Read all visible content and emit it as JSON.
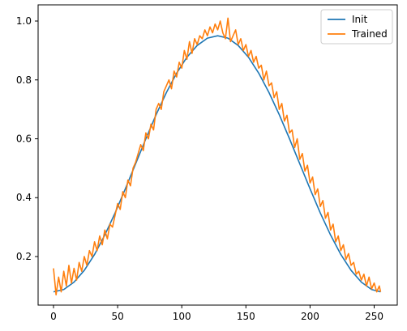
{
  "chart_data": {
    "type": "line",
    "title": "",
    "xlabel": "",
    "ylabel": "",
    "xlim": [
      -12,
      268
    ],
    "ylim": [
      0.035,
      1.055
    ],
    "xticks": [
      0,
      50,
      100,
      150,
      200,
      250
    ],
    "xtick_labels": [
      "0",
      "50",
      "100",
      "150",
      "200",
      "250"
    ],
    "yticks": [
      0.2,
      0.4,
      0.6,
      0.8,
      1.0
    ],
    "ytick_labels": [
      "0.2",
      "0.4",
      "0.6",
      "0.8",
      "1.0"
    ],
    "grid": false,
    "legend_position": "top-right",
    "series": [
      {
        "name": "Init",
        "color": "#1f77b4",
        "x": [
          0,
          8,
          16,
          24,
          32,
          40,
          48,
          56,
          64,
          72,
          80,
          88,
          96,
          104,
          112,
          120,
          128,
          136,
          144,
          152,
          160,
          168,
          176,
          184,
          192,
          200,
          208,
          216,
          224,
          232,
          240,
          248,
          255
        ],
        "y": [
          0.08,
          0.088,
          0.113,
          0.153,
          0.207,
          0.273,
          0.348,
          0.43,
          0.515,
          0.6,
          0.682,
          0.757,
          0.823,
          0.877,
          0.917,
          0.942,
          0.95,
          0.942,
          0.917,
          0.877,
          0.823,
          0.757,
          0.682,
          0.6,
          0.515,
          0.43,
          0.348,
          0.273,
          0.207,
          0.153,
          0.113,
          0.088,
          0.08
        ]
      },
      {
        "name": "Trained",
        "color": "#ff7f0e",
        "x": [
          0,
          2,
          4,
          6,
          8,
          10,
          12,
          14,
          16,
          18,
          20,
          22,
          24,
          26,
          28,
          30,
          32,
          34,
          36,
          38,
          40,
          42,
          44,
          46,
          48,
          50,
          52,
          54,
          56,
          58,
          60,
          62,
          64,
          66,
          68,
          70,
          72,
          74,
          76,
          78,
          80,
          82,
          84,
          86,
          88,
          90,
          92,
          94,
          96,
          98,
          100,
          102,
          104,
          106,
          108,
          110,
          112,
          114,
          116,
          118,
          120,
          122,
          124,
          126,
          128,
          130,
          132,
          134,
          136,
          138,
          140,
          142,
          144,
          146,
          148,
          150,
          152,
          154,
          156,
          158,
          160,
          162,
          164,
          166,
          168,
          170,
          172,
          174,
          176,
          178,
          180,
          182,
          184,
          186,
          188,
          190,
          192,
          194,
          196,
          198,
          200,
          202,
          204,
          206,
          208,
          210,
          212,
          214,
          216,
          218,
          220,
          222,
          224,
          226,
          228,
          230,
          232,
          234,
          236,
          238,
          240,
          242,
          244,
          246,
          248,
          250,
          252,
          254,
          255
        ],
        "y": [
          0.16,
          0.07,
          0.13,
          0.08,
          0.15,
          0.1,
          0.17,
          0.11,
          0.16,
          0.12,
          0.18,
          0.15,
          0.2,
          0.17,
          0.22,
          0.2,
          0.25,
          0.22,
          0.27,
          0.24,
          0.29,
          0.26,
          0.31,
          0.3,
          0.34,
          0.38,
          0.36,
          0.42,
          0.4,
          0.46,
          0.44,
          0.5,
          0.52,
          0.55,
          0.58,
          0.56,
          0.62,
          0.6,
          0.65,
          0.63,
          0.7,
          0.72,
          0.7,
          0.76,
          0.78,
          0.8,
          0.77,
          0.83,
          0.81,
          0.86,
          0.84,
          0.9,
          0.87,
          0.93,
          0.89,
          0.94,
          0.92,
          0.95,
          0.94,
          0.97,
          0.95,
          0.98,
          0.96,
          0.99,
          0.97,
          1.0,
          0.96,
          0.94,
          1.01,
          0.93,
          0.95,
          0.97,
          0.92,
          0.94,
          0.9,
          0.92,
          0.88,
          0.9,
          0.86,
          0.88,
          0.84,
          0.85,
          0.8,
          0.83,
          0.78,
          0.79,
          0.74,
          0.76,
          0.7,
          0.72,
          0.66,
          0.68,
          0.62,
          0.63,
          0.57,
          0.6,
          0.53,
          0.55,
          0.49,
          0.51,
          0.45,
          0.47,
          0.41,
          0.43,
          0.37,
          0.39,
          0.33,
          0.35,
          0.29,
          0.31,
          0.25,
          0.27,
          0.22,
          0.24,
          0.19,
          0.21,
          0.17,
          0.18,
          0.14,
          0.15,
          0.12,
          0.14,
          0.1,
          0.13,
          0.09,
          0.11,
          0.08,
          0.1,
          0.08
        ]
      }
    ]
  }
}
